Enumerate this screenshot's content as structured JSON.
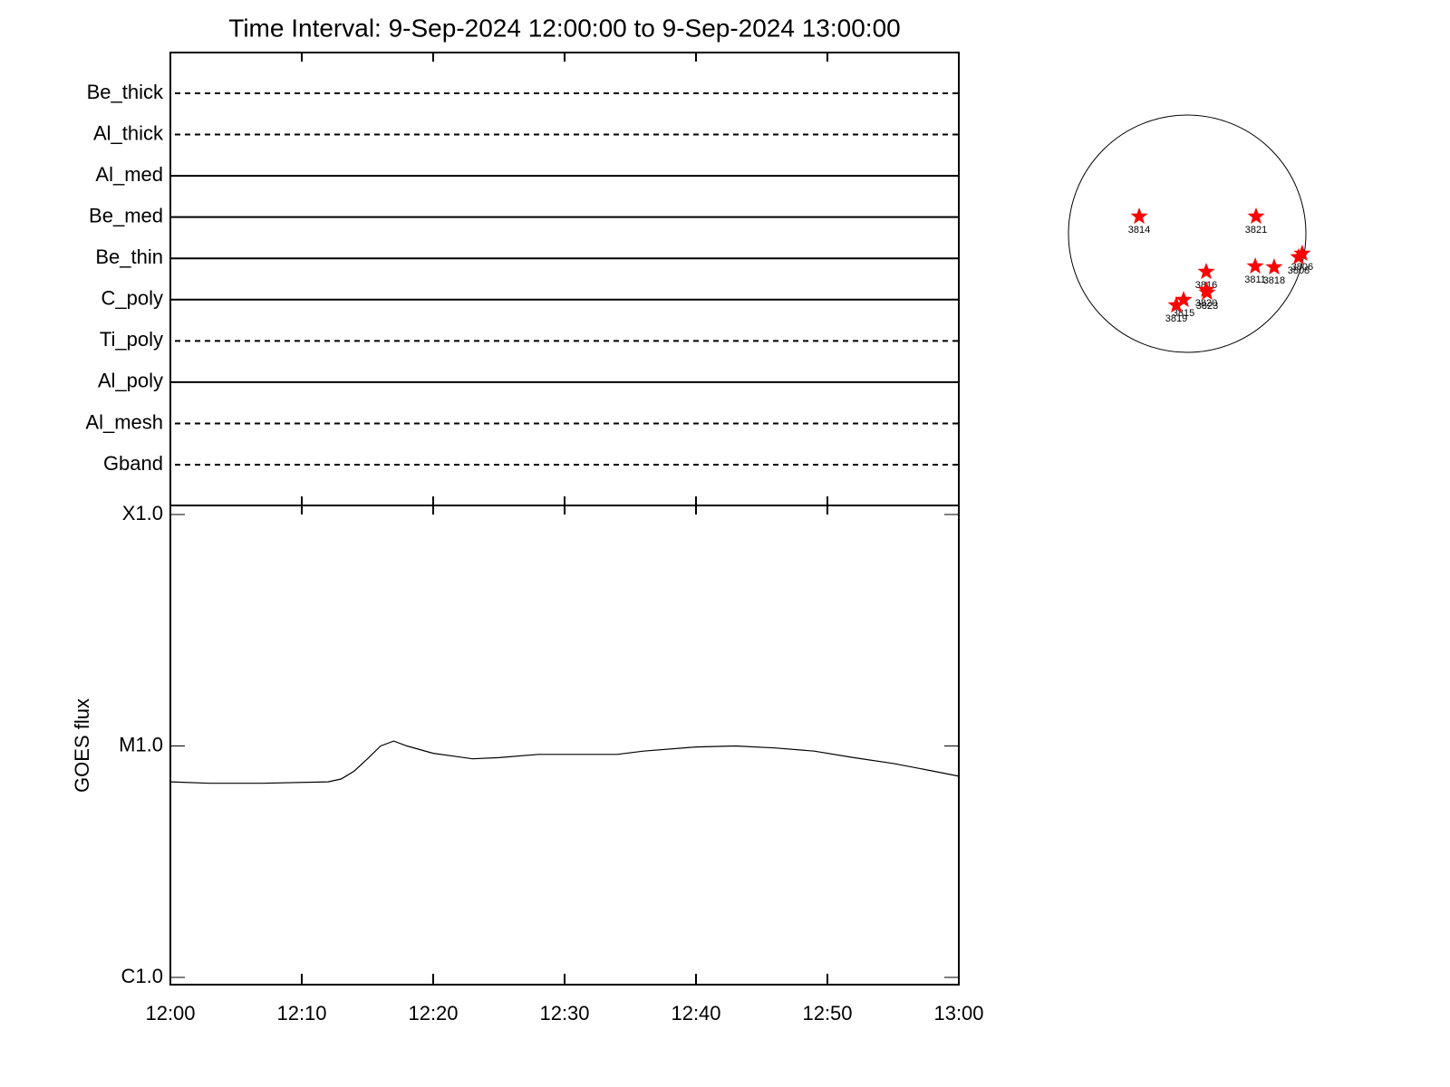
{
  "chart_data": [
    {
      "type": "filters",
      "title": "Time Interval:  9-Sep-2024 12:00:00 to  9-Sep-2024 13:00:00",
      "categories": [
        "Be_thick",
        "Al_thick",
        "Al_med",
        "Be_med",
        "Be_thin",
        "C_poly",
        "Ti_poly",
        "Al_poly",
        "Al_mesh",
        "Gband"
      ],
      "line_styles": [
        "dashed",
        "dashed",
        "solid",
        "solid",
        "solid",
        "solid",
        "dashed",
        "solid",
        "dashed",
        "dashed"
      ],
      "color": "#000000",
      "xlim": [
        "12:00",
        "13:00"
      ],
      "xticks": [
        "12:00",
        "12:10",
        "12:20",
        "12:30",
        "12:40",
        "12:50",
        "13:00"
      ]
    },
    {
      "type": "line",
      "ylabel": "GOES flux",
      "log_scale": true,
      "x": [
        "12:00",
        "12:03",
        "12:07",
        "12:12",
        "12:13",
        "12:14",
        "12:15",
        "12:16",
        "12:17",
        "12:18",
        "12:20",
        "12:23",
        "12:25",
        "12:28",
        "12:30",
        "12:34",
        "12:36",
        "12:40",
        "12:43",
        "12:46",
        "12:49",
        "12:52",
        "12:55",
        "12:58",
        "13:00"
      ],
      "series": [
        {
          "name": "GOES",
          "color": "#000000",
          "values": [
            7e-06,
            6.9e-06,
            6.9e-06,
            7e-06,
            7.2e-06,
            7.8e-06,
            8.8e-06,
            1e-05,
            1.05e-05,
            1e-05,
            9.3e-06,
            8.8e-06,
            8.9e-06,
            9.2e-06,
            9.2e-06,
            9.2e-06,
            9.5e-06,
            9.9e-06,
            1e-05,
            9.8e-06,
            9.5e-06,
            8.9e-06,
            8.4e-06,
            7.8e-06,
            7.4e-06
          ]
        }
      ],
      "xlim": [
        "12:00",
        "13:00"
      ],
      "xticks": [
        "12:00",
        "12:10",
        "12:20",
        "12:30",
        "12:40",
        "12:50",
        "13:00"
      ],
      "ylim": [
        1e-06,
        0.0001
      ],
      "yticks": [
        {
          "value": 1e-06,
          "label": "C1.0"
        },
        {
          "value": 1e-05,
          "label": "M1.0"
        },
        {
          "value": 0.0001,
          "label": "X1.0"
        }
      ]
    },
    {
      "type": "disk",
      "radius": 960,
      "color": "#ff0000",
      "regions": [
        {
          "name": "3814",
          "x": -388,
          "y": 139
        },
        {
          "name": "3821",
          "x": 557,
          "y": 139
        },
        {
          "name": "3806",
          "x": 930,
          "y": -161
        },
        {
          "name": "3808",
          "x": 901,
          "y": -190
        },
        {
          "name": "3811",
          "x": 550,
          "y": -264
        },
        {
          "name": "3818",
          "x": 703,
          "y": -271
        },
        {
          "name": "3816",
          "x": 154,
          "y": -308
        },
        {
          "name": "3820",
          "x": 154,
          "y": -454
        },
        {
          "name": "3823",
          "x": 161,
          "y": -476
        },
        {
          "name": "3815",
          "x": -29,
          "y": -535
        },
        {
          "name": "3819",
          "x": -88,
          "y": -579
        }
      ]
    }
  ]
}
